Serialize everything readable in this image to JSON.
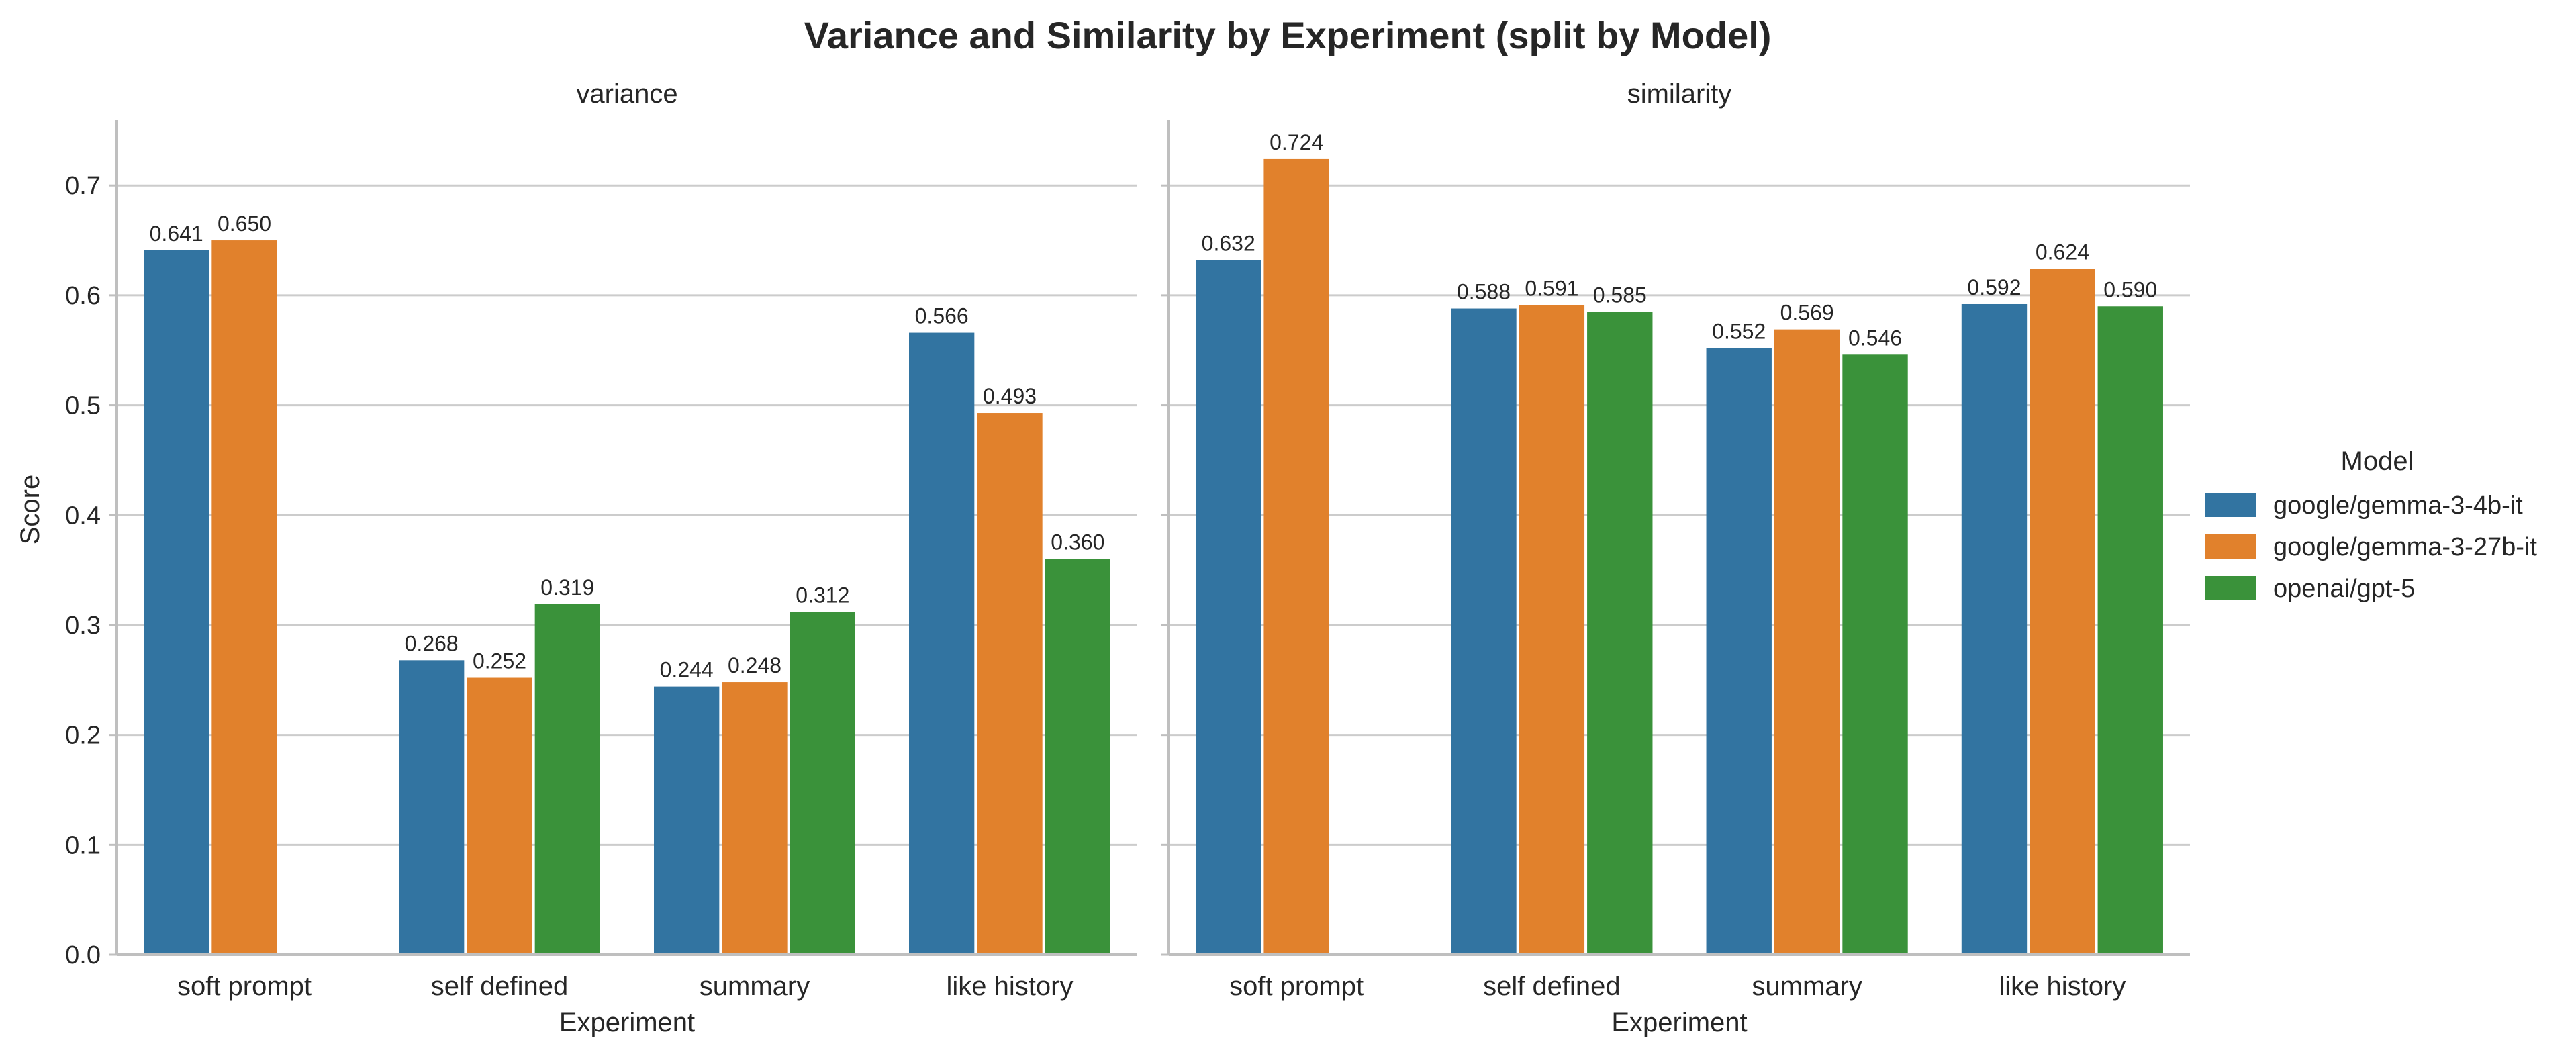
{
  "chart_data": {
    "type": "bar",
    "title": "Variance and Similarity by Experiment (split by Model)",
    "ylabel": "Score",
    "ylim": [
      0,
      0.76
    ],
    "yticks": [
      0.0,
      0.1,
      0.2,
      0.3,
      0.4,
      0.5,
      0.6,
      0.7
    ],
    "ytick_labels": [
      "0.0",
      "0.1",
      "0.2",
      "0.3",
      "0.4",
      "0.5",
      "0.6",
      "0.7"
    ],
    "grid": "horizontal",
    "legend": {
      "title": "Model",
      "placement": "right"
    },
    "series_colors": [
      "#3274a1",
      "#e1812c",
      "#3a923a"
    ],
    "series_names": [
      "google/gemma-3-4b-it",
      "google/gemma-3-27b-it",
      "openai/gpt-5"
    ],
    "panels": [
      {
        "title": "variance",
        "xlabel": "Experiment",
        "categories": [
          "soft prompt",
          "self defined",
          "summary",
          "like history"
        ],
        "series": [
          {
            "name": "google/gemma-3-4b-it",
            "values": [
              0.641,
              0.268,
              0.244,
              0.566
            ],
            "labels": [
              "0.641",
              "0.268",
              "0.244",
              "0.566"
            ]
          },
          {
            "name": "google/gemma-3-27b-it",
            "values": [
              0.65,
              0.252,
              0.248,
              0.493
            ],
            "labels": [
              "0.650",
              "0.252",
              "0.248",
              "0.493"
            ]
          },
          {
            "name": "openai/gpt-5",
            "values": [
              null,
              0.319,
              0.312,
              0.36
            ],
            "labels": [
              "",
              "0.319",
              "0.312",
              "0.360"
            ]
          }
        ]
      },
      {
        "title": "similarity",
        "xlabel": "Experiment",
        "categories": [
          "soft prompt",
          "self defined",
          "summary",
          "like history"
        ],
        "series": [
          {
            "name": "google/gemma-3-4b-it",
            "values": [
              0.632,
              0.588,
              0.552,
              0.592
            ],
            "labels": [
              "0.632",
              "0.588",
              "0.552",
              "0.592"
            ]
          },
          {
            "name": "google/gemma-3-27b-it",
            "values": [
              0.724,
              0.591,
              0.569,
              0.624
            ],
            "labels": [
              "0.724",
              "0.591",
              "0.569",
              "0.624"
            ]
          },
          {
            "name": "openai/gpt-5",
            "values": [
              null,
              0.585,
              0.546,
              0.59
            ],
            "labels": [
              "",
              "0.585",
              "0.546",
              "0.590"
            ]
          }
        ]
      }
    ]
  }
}
